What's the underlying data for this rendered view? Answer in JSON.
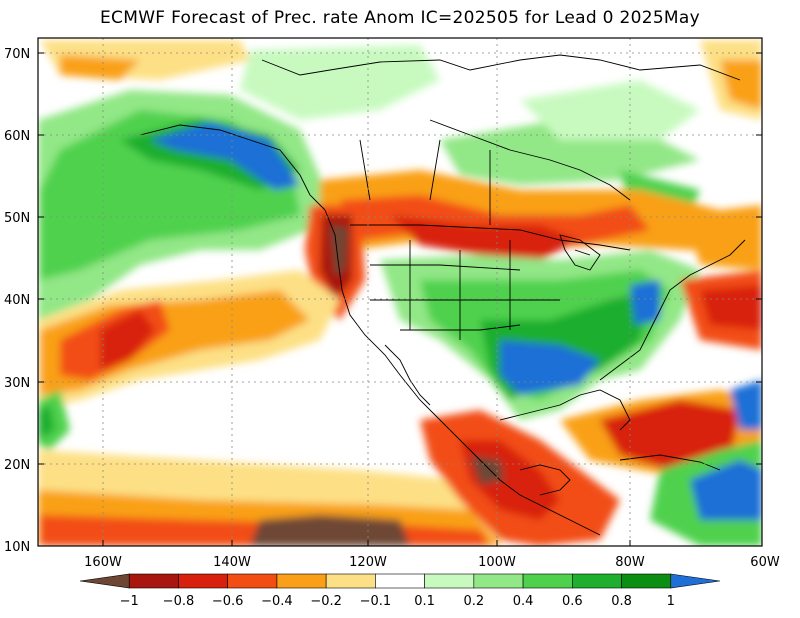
{
  "title": "ECMWF Forecast of Prec. rate Anom IC=202505 for Lead 0 2025May",
  "map": {
    "lat_labels": [
      "70N",
      "60N",
      "50N",
      "40N",
      "30N",
      "20N",
      "10N"
    ],
    "lon_labels": [
      "160W",
      "140W",
      "120W",
      "100W",
      "80W",
      "60W"
    ],
    "lat_range": [
      10,
      72
    ],
    "lon_range": [
      -172,
      -60
    ]
  },
  "colorbar": {
    "labels": [
      "−1",
      "−0.8",
      "−0.6",
      "−0.4",
      "−0.2",
      "−0.1",
      "0.1",
      "0.2",
      "0.4",
      "0.6",
      "0.8",
      "1"
    ],
    "colors": [
      "#6e4634",
      "#a8160f",
      "#d8200f",
      "#f24d12",
      "#f9a018",
      "#fde085",
      "#ffffff",
      "#c8fac0",
      "#92e786",
      "#4fd14d",
      "#1fae2e",
      "#0c8e12",
      "#1f6fd6"
    ]
  }
}
